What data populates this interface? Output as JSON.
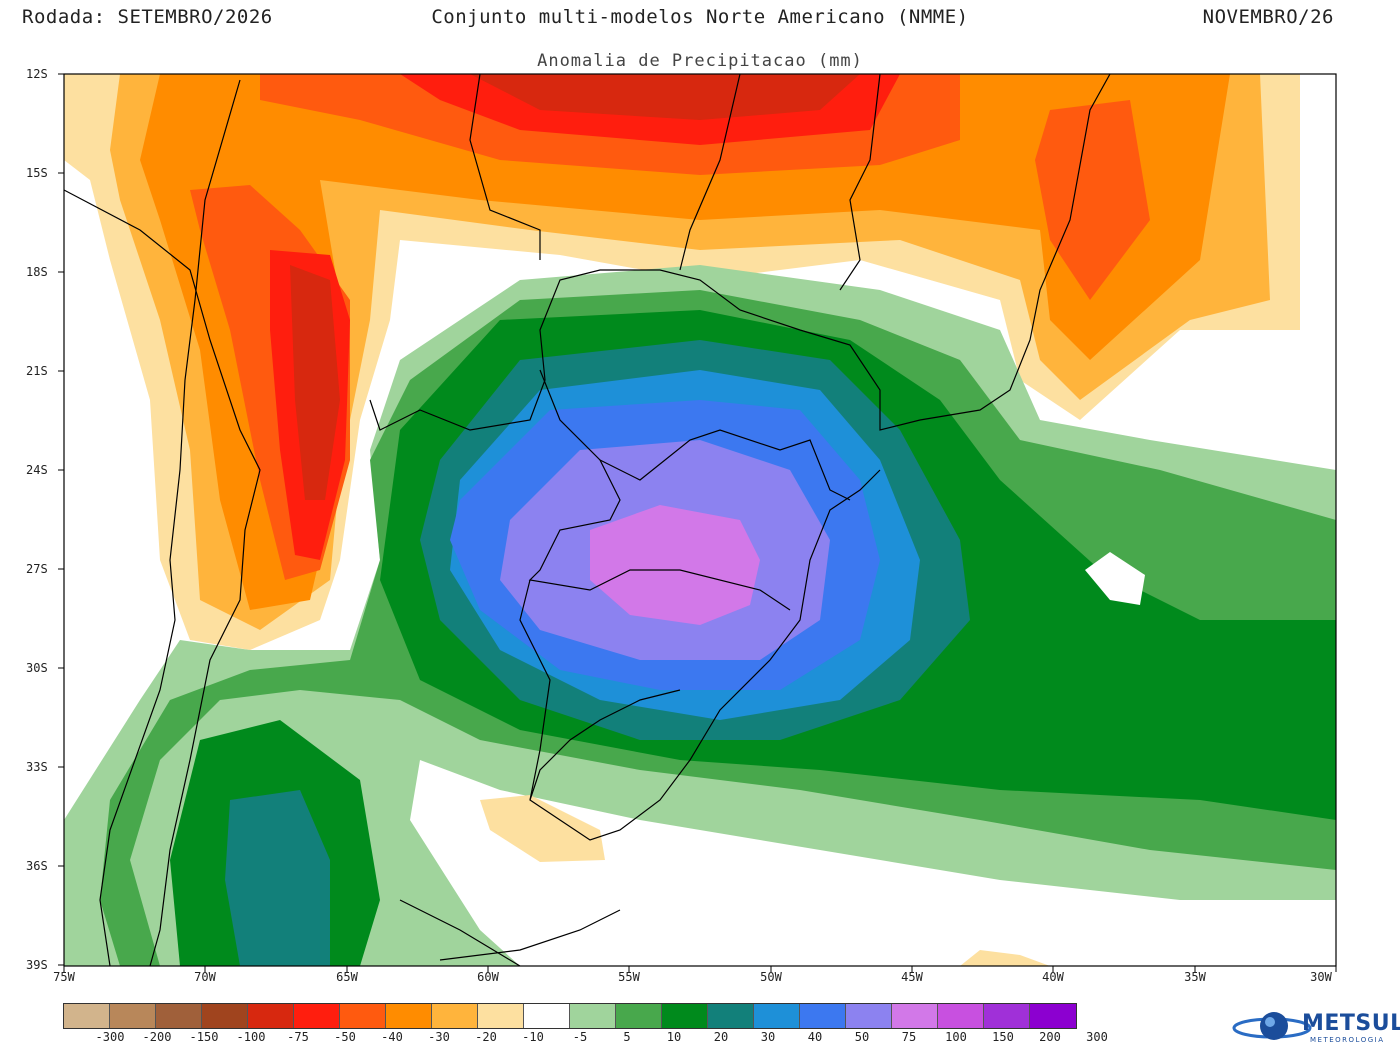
{
  "header": {
    "left": "Rodada: SETEMBRO/2026",
    "center": "Conjunto multi-modelos Norte Americano (NMME)",
    "right": "NOVEMBRO/26",
    "subtitle": "Anomalia de Precipitacao (mm)"
  },
  "axes": {
    "lat_labels": [
      "12S",
      "15S",
      "18S",
      "21S",
      "24S",
      "27S",
      "30S",
      "33S",
      "36S",
      "39S"
    ],
    "lon_labels": [
      "75W",
      "70W",
      "65W",
      "60W",
      "55W",
      "50W",
      "45W",
      "40W",
      "35W",
      "30W"
    ]
  },
  "legend": {
    "ticks": [
      "-300",
      "-200",
      "-150",
      "-100",
      "-75",
      "-50",
      "-40",
      "-30",
      "-20",
      "-10",
      "-5",
      "5",
      "10",
      "20",
      "30",
      "40",
      "50",
      "75",
      "100",
      "150",
      "200",
      "300"
    ],
    "colors": [
      "#d2b48c",
      "#b8875a",
      "#a0603a",
      "#a0441e",
      "#d7280f",
      "#ff1e0e",
      "#ff5a0f",
      "#ff8c00",
      "#ffb43c",
      "#fde0a0",
      "#ffffff",
      "#a0d49c",
      "#48a84c",
      "#008a1c",
      "#12807a",
      "#1e90d8",
      "#3c78f0",
      "#8c82f0",
      "#d278e8",
      "#c850e0",
      "#a030d8",
      "#8c00d0"
    ]
  },
  "logo": {
    "name": "METSUL",
    "sub": "METEOROLOGIA"
  },
  "map": {
    "region": "South America (12S–39S, 75W–30W)",
    "variable": "precipitation anomaly",
    "units": "mm",
    "max_positive_anomaly_center": "Paraguay/Northeastern Argentina/Southern Brazil",
    "max_negative_anomaly_center": "Northern Argentina/Bolivia and Central Brazil"
  }
}
